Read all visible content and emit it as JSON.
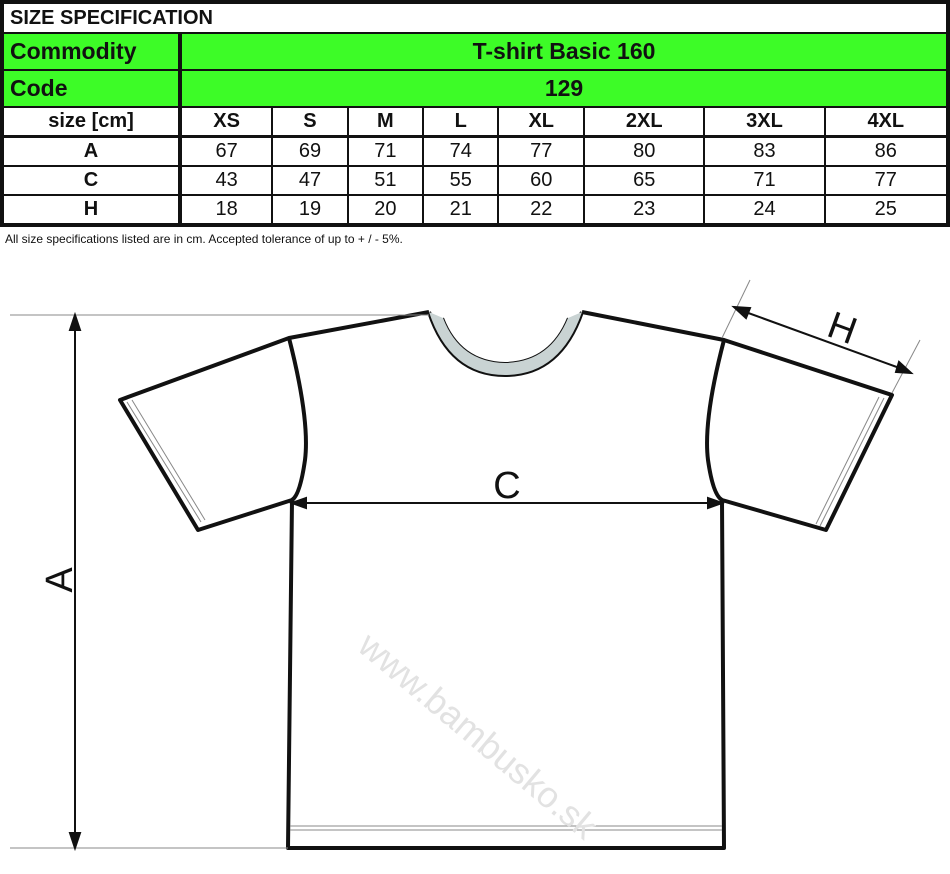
{
  "title": "SIZE SPECIFICATION",
  "commodity": {
    "label": "Commodity",
    "value": "T-shirt Basic 160"
  },
  "code": {
    "label": "Code",
    "value": "129"
  },
  "table": {
    "header": "size [cm]",
    "sizes": [
      "XS",
      "S",
      "M",
      "L",
      "XL",
      "2XL",
      "3XL",
      "4XL"
    ],
    "rows": [
      {
        "label": "A",
        "values": [
          "67",
          "69",
          "71",
          "74",
          "77",
          "80",
          "83",
          "86"
        ]
      },
      {
        "label": "C",
        "values": [
          "43",
          "47",
          "51",
          "55",
          "60",
          "65",
          "71",
          "77"
        ]
      },
      {
        "label": "H",
        "values": [
          "18",
          "19",
          "20",
          "21",
          "22",
          "23",
          "24",
          "25"
        ]
      }
    ]
  },
  "note": "All size specifications listed are in cm. Accepted tolerance of up to + / - 5%.",
  "diagram": {
    "label_a": "A",
    "label_c": "C",
    "label_h": "H",
    "watermark": "www.bambusko.sk"
  },
  "colors": {
    "accent": "#3dfc27"
  }
}
